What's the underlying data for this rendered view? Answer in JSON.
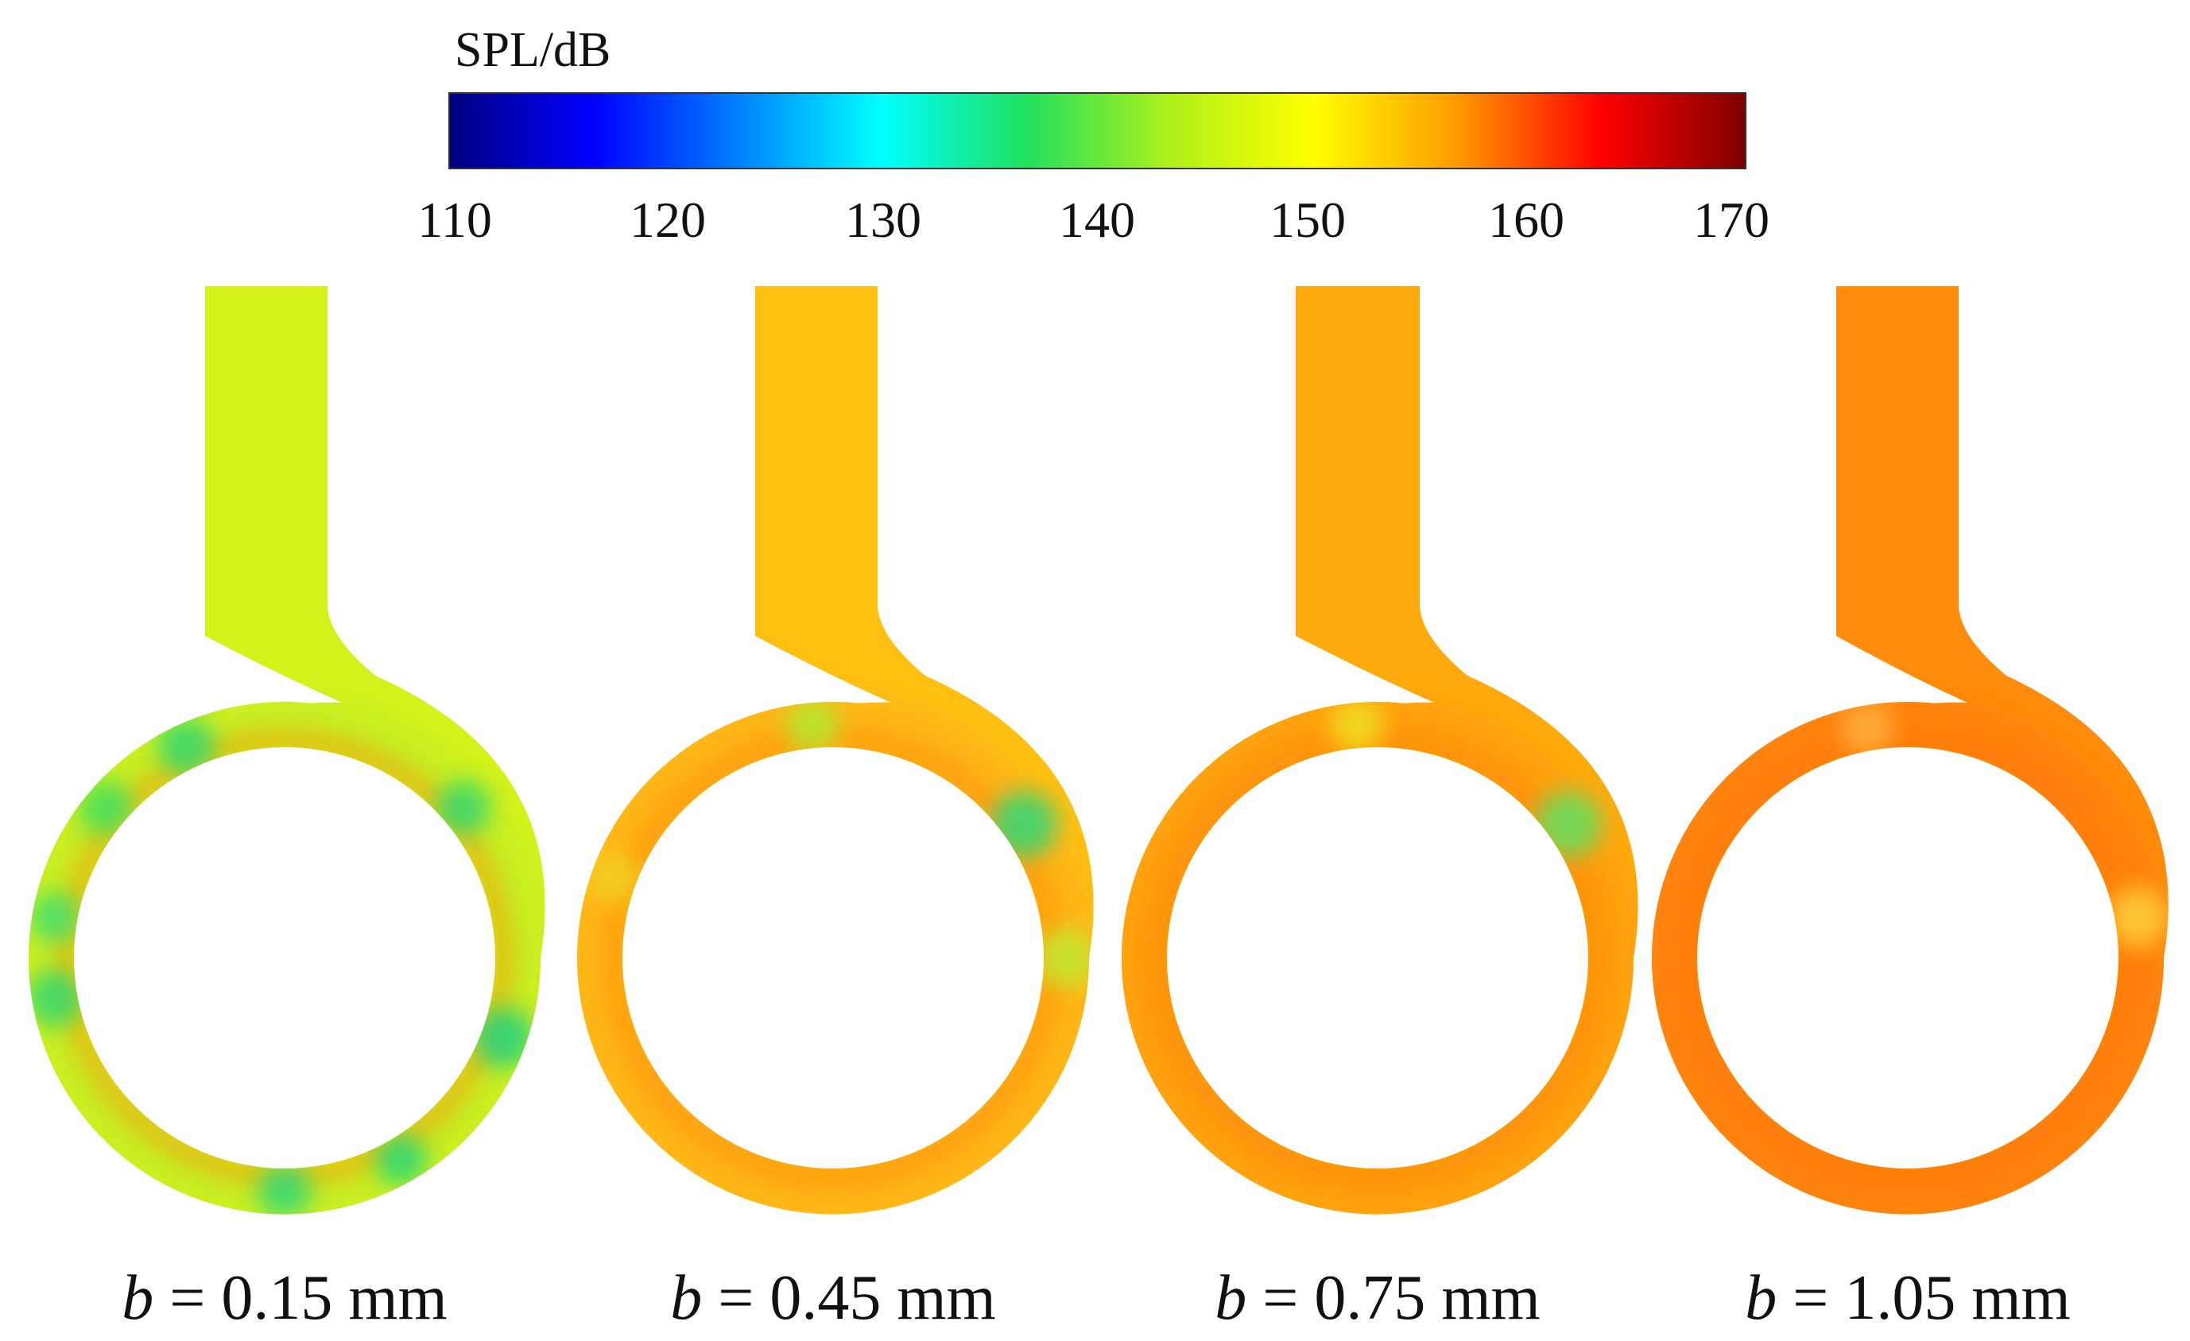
{
  "colorbar": {
    "title": "SPL/dB",
    "min": 110,
    "max": 170,
    "ticks": [
      "110",
      "120",
      "130",
      "140",
      "150",
      "160",
      "170"
    ],
    "stops": [
      "#00007f",
      "#0000ff",
      "#0080ff",
      "#00ffff",
      "#20e060",
      "#aef01a",
      "#ffff00",
      "#ff9a00",
      "#ff0000",
      "#7f0000"
    ]
  },
  "cases": [
    {
      "label_var": "b",
      "label_rest": " = 0.15 mm",
      "base_color": "#d4f21a",
      "ring_color": "#c8ee22"
    },
    {
      "label_var": "b",
      "label_rest": " = 0.45 mm",
      "base_color": "#ffc012",
      "ring_color": "#ffb514"
    },
    {
      "label_var": "b",
      "label_rest": " = 0.75 mm",
      "base_color": "#ffaa0c",
      "ring_color": "#ffa010"
    },
    {
      "label_var": "b",
      "label_rest": " = 1.05 mm",
      "base_color": "#ff8c0a",
      "ring_color": "#ff8210"
    }
  ]
}
